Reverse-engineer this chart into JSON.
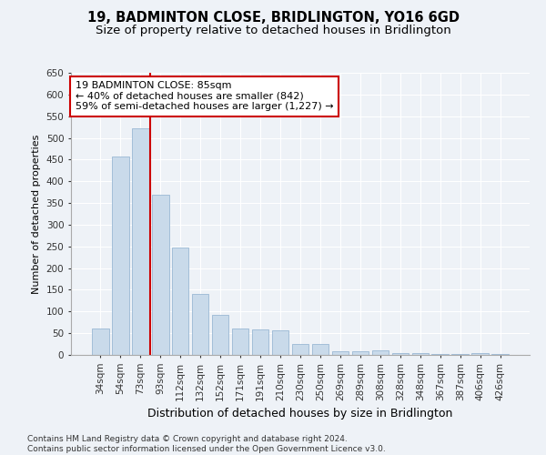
{
  "title": "19, BADMINTON CLOSE, BRIDLINGTON, YO16 6GD",
  "subtitle": "Size of property relative to detached houses in Bridlington",
  "xlabel": "Distribution of detached houses by size in Bridlington",
  "ylabel": "Number of detached properties",
  "categories": [
    "34sqm",
    "54sqm",
    "73sqm",
    "93sqm",
    "112sqm",
    "132sqm",
    "152sqm",
    "171sqm",
    "191sqm",
    "210sqm",
    "230sqm",
    "250sqm",
    "269sqm",
    "289sqm",
    "308sqm",
    "328sqm",
    "348sqm",
    "367sqm",
    "387sqm",
    "406sqm",
    "426sqm"
  ],
  "values": [
    60,
    457,
    522,
    370,
    247,
    140,
    93,
    60,
    58,
    57,
    25,
    25,
    8,
    8,
    10,
    5,
    5,
    2,
    2,
    5,
    2
  ],
  "bar_color": "#c9daea",
  "bar_edge_color": "#9ab8d4",
  "vline_x_index": 2.5,
  "vline_color": "#cc0000",
  "annotation_line1": "19 BADMINTON CLOSE: 85sqm",
  "annotation_line2": "← 40% of detached houses are smaller (842)",
  "annotation_line3": "59% of semi-detached houses are larger (1,227) →",
  "annotation_box_color": "#ffffff",
  "annotation_box_edge": "#cc0000",
  "ylim": [
    0,
    650
  ],
  "yticks": [
    0,
    50,
    100,
    150,
    200,
    250,
    300,
    350,
    400,
    450,
    500,
    550,
    600,
    650
  ],
  "footer_line1": "Contains HM Land Registry data © Crown copyright and database right 2024.",
  "footer_line2": "Contains public sector information licensed under the Open Government Licence v3.0.",
  "title_fontsize": 10.5,
  "subtitle_fontsize": 9.5,
  "xlabel_fontsize": 9,
  "ylabel_fontsize": 8,
  "tick_fontsize": 7.5,
  "annotation_fontsize": 8,
  "footer_fontsize": 6.5,
  "background_color": "#eef2f7",
  "plot_bg_color": "#eef2f7",
  "grid_color": "#ffffff"
}
